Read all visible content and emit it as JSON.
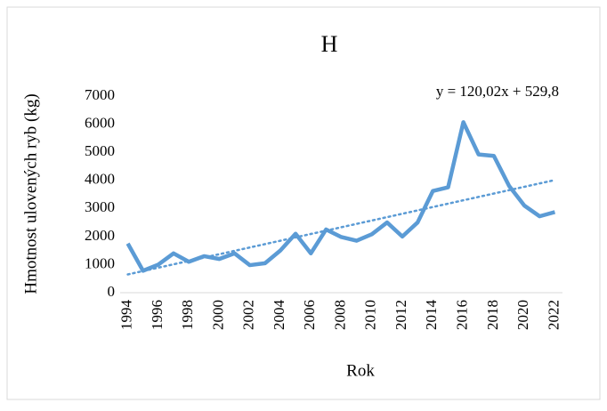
{
  "chart_data": {
    "type": "line",
    "title": "H",
    "y_label": "Hmotnost ulovených ryb (kg)",
    "x_label": "Rok",
    "categories": [
      "1994",
      null,
      "1996",
      null,
      "1998",
      null,
      "2000",
      null,
      "2002",
      null,
      "2004",
      null,
      "2006",
      null,
      "2008",
      null,
      "2010",
      null,
      "2012",
      null,
      "2014",
      null,
      "2016",
      null,
      "2018",
      null,
      "2020",
      null,
      "2022"
    ],
    "series": [
      {
        "name": "H",
        "color": "#5b9bd5",
        "values": [
          1750,
          780,
          1000,
          1400,
          1100,
          1300,
          1200,
          1400,
          980,
          1050,
          1500,
          2100,
          1400,
          2250,
          1980,
          1850,
          2080,
          2500,
          2000,
          2500,
          3620,
          3750,
          6070,
          4920,
          4870,
          3800,
          3100,
          2720,
          2870
        ]
      }
    ],
    "trendline": {
      "slope": 120.02,
      "intercept": 529.8,
      "label": "y = 120,02x + 529,8"
    },
    "ylim": [
      0,
      7000
    ],
    "yticks": [
      0,
      1000,
      2000,
      3000,
      4000,
      5000,
      6000,
      7000
    ],
    "grid": false
  }
}
